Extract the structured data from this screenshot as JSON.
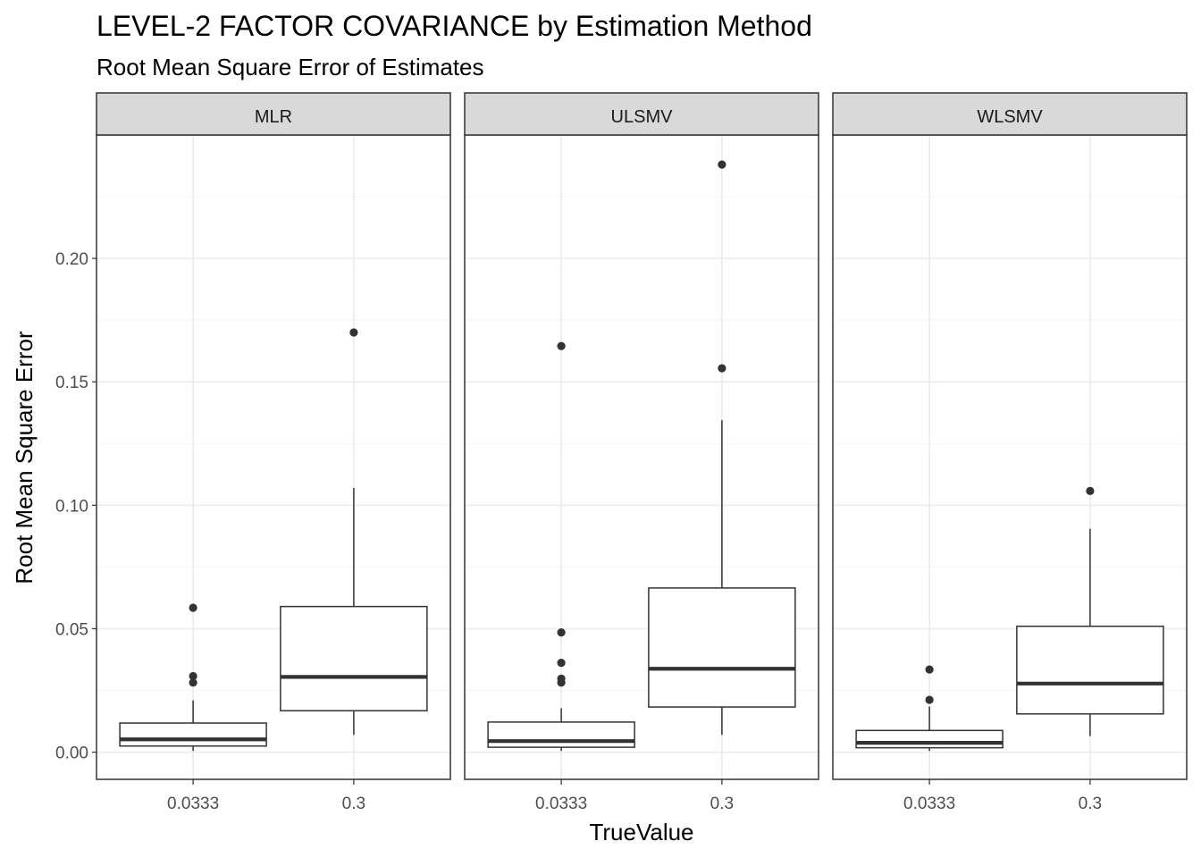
{
  "chart_data": {
    "type": "boxplot",
    "title": "LEVEL-2 FACTOR COVARIANCE by Estimation Method",
    "subtitle": "Root Mean Square Error of Estimates",
    "xlabel": "TrueValue",
    "ylabel": "Root Mean Square Error",
    "ylim": [
      -0.011,
      0.25
    ],
    "yticks": [
      0.0,
      0.05,
      0.1,
      0.15,
      0.2
    ],
    "ytick_labels": [
      "0.00",
      "0.05",
      "0.10",
      "0.15",
      "0.20"
    ],
    "categories": [
      "0.0333",
      "0.3"
    ],
    "grid": true,
    "colors": {
      "box": "#333333",
      "grid_major": "#ebebeb",
      "grid_minor": "#f5f5f5",
      "strip_fill": "#d9d9d9",
      "panel_border": "#333333"
    },
    "panels": [
      {
        "name": "MLR",
        "boxes": [
          {
            "x": "0.0333",
            "whisker_low": 0.0005,
            "q1": 0.0025,
            "median": 0.0052,
            "q3": 0.0118,
            "whisker_high": 0.021,
            "outliers": [
              0.0585,
              0.0308,
              0.0282
            ]
          },
          {
            "x": "0.3",
            "whisker_low": 0.007,
            "q1": 0.0168,
            "median": 0.0305,
            "q3": 0.059,
            "whisker_high": 0.107,
            "outliers": [
              0.17
            ]
          }
        ]
      },
      {
        "name": "ULSMV",
        "boxes": [
          {
            "x": "0.0333",
            "whisker_low": 0.0005,
            "q1": 0.002,
            "median": 0.0045,
            "q3": 0.0122,
            "whisker_high": 0.0178,
            "outliers": [
              0.1645,
              0.0485,
              0.0362,
              0.0298,
              0.0282
            ]
          },
          {
            "x": "0.3",
            "whisker_low": 0.007,
            "q1": 0.0183,
            "median": 0.0338,
            "q3": 0.0665,
            "whisker_high": 0.1345,
            "outliers": [
              0.238,
              0.1555
            ]
          }
        ]
      },
      {
        "name": "WLSMV",
        "boxes": [
          {
            "x": "0.0333",
            "whisker_low": 0.0005,
            "q1": 0.0018,
            "median": 0.0038,
            "q3": 0.0088,
            "whisker_high": 0.0185,
            "outliers": [
              0.0335,
              0.0212
            ]
          },
          {
            "x": "0.3",
            "whisker_low": 0.0065,
            "q1": 0.0155,
            "median": 0.0278,
            "q3": 0.051,
            "whisker_high": 0.0905,
            "outliers": [
              0.1058
            ]
          }
        ]
      }
    ]
  }
}
